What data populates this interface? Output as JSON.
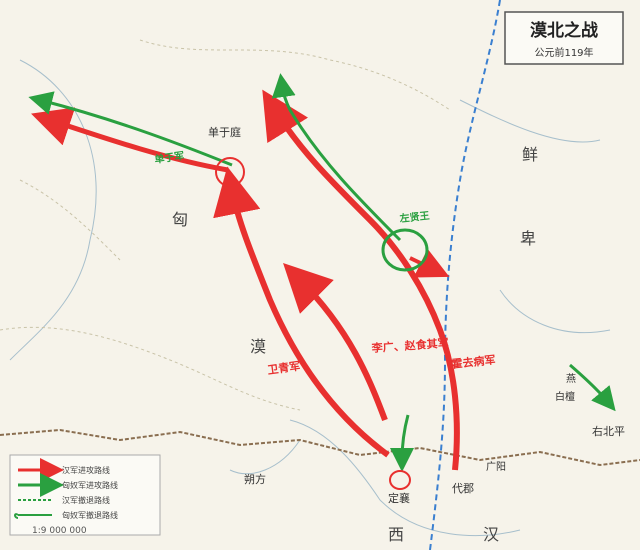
{
  "title": "漠北之战",
  "subtitle": "公元前119年",
  "scale": "1:9 000 000",
  "colors": {
    "han_route": "#e8302f",
    "xiongnu_route": "#2aa040",
    "border": "#3a7fd0",
    "river": "#9ab7c9",
    "land": "#f6f3ea"
  },
  "places": {
    "chanyu_court": "单于庭",
    "xiong": "匈",
    "xian": "鲜",
    "bei": "卑",
    "mo": "漠",
    "xi": "西",
    "han": "汉",
    "shuofang": "朔方",
    "dingxiang": "定襄",
    "daijun": "代郡",
    "guangyang": "广阳",
    "baidan": "白檀",
    "youbeiping": "右北平",
    "zuoyou": "左贤王",
    "yan": "燕"
  },
  "route_labels": {
    "wei_qing": "卫青军",
    "huo_qubing": "霍去病军",
    "li_guang_zhao_yiji": "李广、赵食其军",
    "chanyu_army": "单于军",
    "zuoxianwang": "左贤王"
  },
  "legend": {
    "items": [
      {
        "label": "汉军进攻路线",
        "color": "#e8302f"
      },
      {
        "label": "匈奴军进攻路线",
        "color": "#2aa040"
      },
      {
        "label": "汉军撤退路线",
        "color": "#2aa040"
      },
      {
        "label": "匈奴军撤退路线",
        "color": "#2aa040"
      }
    ]
  }
}
